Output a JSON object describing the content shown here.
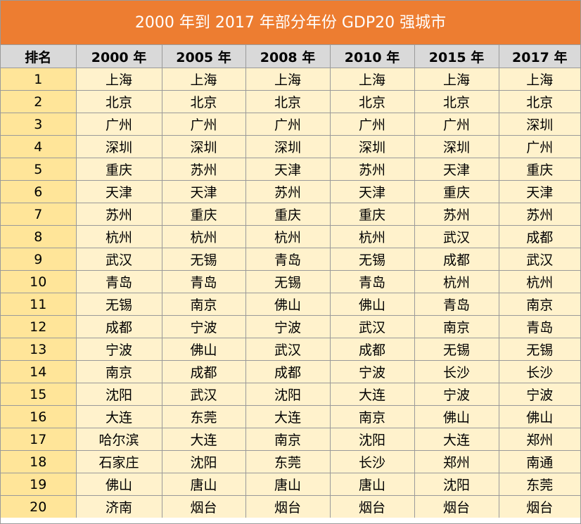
{
  "title": "2000 年到 2017 年部分年份 GDP20 强城市",
  "colors": {
    "title_background": "#ed7d31",
    "header_background": "#d9d9d9",
    "rank_cell_background": "#ffe599",
    "cell_background": "#fff2cc"
  },
  "headers": [
    "排名",
    "2000 年",
    "2005 年",
    "2008 年",
    "2010 年",
    "2015 年",
    "2017 年"
  ],
  "rows": [
    [
      "1",
      "上海",
      "上海",
      "上海",
      "上海",
      "上海",
      "上海"
    ],
    [
      "2",
      "北京",
      "北京",
      "北京",
      "北京",
      "北京",
      "北京"
    ],
    [
      "3",
      "广州",
      "广州",
      "广州",
      "广州",
      "广州",
      "深圳"
    ],
    [
      "4",
      "深圳",
      "深圳",
      "深圳",
      "深圳",
      "深圳",
      "广州"
    ],
    [
      "5",
      "重庆",
      "苏州",
      "天津",
      "苏州",
      "天津",
      "重庆"
    ],
    [
      "6",
      "天津",
      "天津",
      "苏州",
      "天津",
      "重庆",
      "天津"
    ],
    [
      "7",
      "苏州",
      "重庆",
      "重庆",
      "重庆",
      "苏州",
      "苏州"
    ],
    [
      "8",
      "杭州",
      "杭州",
      "杭州",
      "杭州",
      "武汉",
      "成都"
    ],
    [
      "9",
      "武汉",
      "无锡",
      "青岛",
      "无锡",
      "成都",
      "武汉"
    ],
    [
      "10",
      "青岛",
      "青岛",
      "无锡",
      "青岛",
      "杭州",
      "杭州"
    ],
    [
      "11",
      "无锡",
      "南京",
      "佛山",
      "佛山",
      "青岛",
      "南京"
    ],
    [
      "12",
      "成都",
      "宁波",
      "宁波",
      "武汉",
      "南京",
      "青岛"
    ],
    [
      "13",
      "宁波",
      "佛山",
      "武汉",
      "成都",
      "无锡",
      "无锡"
    ],
    [
      "14",
      "南京",
      "成都",
      "成都",
      "宁波",
      "长沙",
      "长沙"
    ],
    [
      "15",
      "沈阳",
      "武汉",
      "沈阳",
      "大连",
      "宁波",
      "宁波"
    ],
    [
      "16",
      "大连",
      "东莞",
      "大连",
      "南京",
      "佛山",
      "佛山"
    ],
    [
      "17",
      "哈尔滨",
      "大连",
      "南京",
      "沈阳",
      "大连",
      "郑州"
    ],
    [
      "18",
      "石家庄",
      "沈阳",
      "东莞",
      "长沙",
      "郑州",
      "南通"
    ],
    [
      "19",
      "佛山",
      "唐山",
      "唐山",
      "唐山",
      "沈阳",
      "东莞"
    ],
    [
      "20",
      "济南",
      "烟台",
      "烟台",
      "烟台",
      "烟台",
      "烟台"
    ]
  ]
}
